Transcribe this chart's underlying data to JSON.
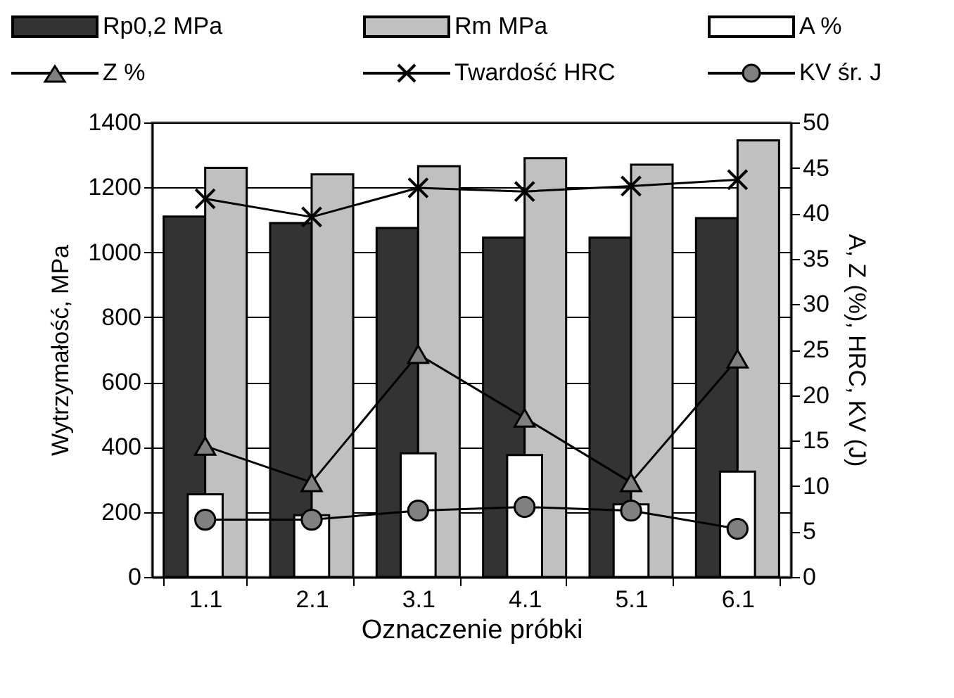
{
  "chart_data": {
    "type": "bar",
    "xlabel": "Oznaczenie próbki",
    "ylabel": "Wytrzymałość, MPa",
    "y2label": "A, Z (%),  HRC, KV (J)",
    "categories": [
      "1.1",
      "2.1",
      "3.1",
      "4.1",
      "5.1",
      "6.1"
    ],
    "series": [
      {
        "name": "Rp0,2 MPa",
        "color": "#333333",
        "values": [
          1110,
          1090,
          1075,
          1045,
          1045,
          1105
        ]
      },
      {
        "name": "Rm MPa",
        "color": "#c0c0c0",
        "values": [
          1260,
          1240,
          1265,
          1290,
          1270,
          1345
        ]
      },
      {
        "name": "A %",
        "axis": "y2",
        "color": "#ffffff",
        "values": [
          9.1,
          6.8,
          13.6,
          13.4,
          8.0,
          11.6
        ]
      },
      {
        "name": "Z %",
        "type": "line",
        "axis": "y2",
        "marker": "triangle",
        "color": "#808080",
        "values": [
          14.4,
          10.4,
          24.5,
          17.5,
          10.4,
          24.0
        ]
      },
      {
        "name": "Twardość HRC",
        "type": "line",
        "axis": "y2",
        "marker": "cross",
        "color": "#000000",
        "values": [
          41.6,
          39.6,
          42.8,
          42.4,
          43.0,
          43.7
        ]
      },
      {
        "name": "KV  śr. J",
        "type": "line",
        "axis": "y2",
        "marker": "circle",
        "color": "#808080",
        "values": [
          6.3,
          6.3,
          7.3,
          7.7,
          7.3,
          5.3
        ]
      }
    ],
    "ylim": [
      0,
      1400
    ],
    "yticks": [
      0,
      200,
      400,
      600,
      800,
      1000,
      1200,
      1400
    ],
    "y2lim": [
      0,
      50
    ],
    "y2ticks": [
      0,
      5,
      10,
      15,
      20,
      25,
      30,
      35,
      40,
      45,
      50
    ],
    "grid": "y",
    "legend": "top"
  }
}
